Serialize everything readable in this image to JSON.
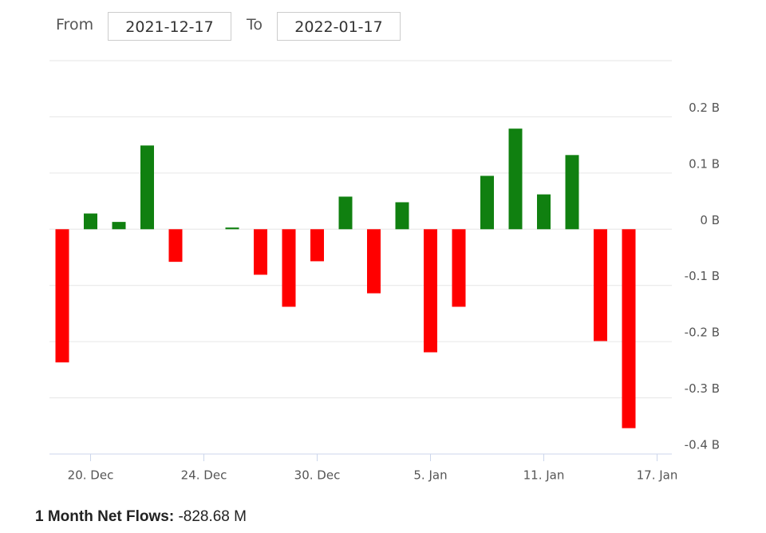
{
  "controls": {
    "from_label": "From",
    "from_value": "2021-12-17",
    "to_label": "To",
    "to_value": "2022-01-17"
  },
  "chart_data": {
    "type": "bar",
    "categories": [
      null,
      "20. Dec",
      null,
      null,
      null,
      "24. Dec",
      null,
      null,
      null,
      "30. Dec",
      null,
      null,
      null,
      "5. Jan",
      null,
      null,
      null,
      "11. Jan",
      null,
      null,
      null,
      "17. Jan"
    ],
    "values": [
      -0.237,
      0.028,
      0.013,
      0.149,
      -0.058,
      null,
      0.003,
      -0.081,
      -0.138,
      -0.057,
      0.058,
      -0.114,
      0.048,
      -0.219,
      -0.138,
      0.095,
      0.179,
      0.062,
      0.132,
      -0.199,
      -0.354,
      null
    ],
    "positive_color": "#108010",
    "negative_color": "#ff0000",
    "ylim": [
      -0.4,
      0.3
    ],
    "yticks": [
      {
        "value": 0.2,
        "label": "0.2 B"
      },
      {
        "value": 0.1,
        "label": "0.1 B"
      },
      {
        "value": 0,
        "label": "0 B"
      },
      {
        "value": -0.1,
        "label": "-0.1 B"
      },
      {
        "value": -0.2,
        "label": "-0.2 B"
      },
      {
        "value": -0.3,
        "label": "-0.3 B"
      },
      {
        "value": -0.4,
        "label": "-0.4 B"
      }
    ],
    "grid": true
  },
  "summary": {
    "label": "1 Month Net Flows:",
    "value": "-828.68 M"
  }
}
